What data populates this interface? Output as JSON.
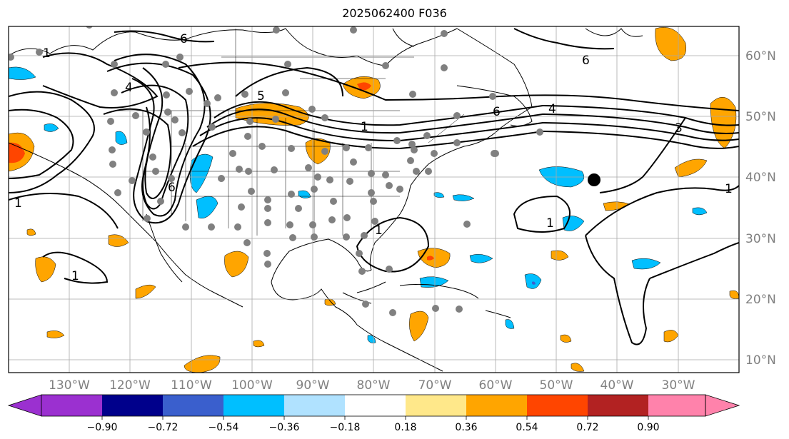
{
  "title": "2025062400 F036",
  "map": {
    "projection": "equirectangular",
    "lon_range": [
      -140,
      -18
    ],
    "lat_range": [
      8,
      65
    ],
    "lat_labels": [
      "60°N",
      "50°N",
      "40°N",
      "30°N",
      "20°N",
      "10°N"
    ],
    "lon_labels": [
      "130°W",
      "120°W",
      "110°W",
      "100°W",
      "90°W",
      "80°W",
      "70°W",
      "60°W",
      "50°W",
      "40°W",
      "30°W"
    ],
    "contour_labels": [
      "6",
      "6",
      "4",
      "5",
      "1",
      "6",
      "4",
      "3",
      "1",
      "1",
      "1",
      "1",
      "1",
      "6",
      "1"
    ],
    "marker_colors": {
      "stations": "#808080",
      "target": "#000000"
    }
  },
  "colorbar": {
    "ticks": [
      "−0.90",
      "−0.72",
      "−0.54",
      "−0.36",
      "−0.18",
      "0.18",
      "0.36",
      "0.54",
      "0.72",
      "0.90"
    ],
    "colors": [
      "#9b30d0",
      "#00008b",
      "#3a5fcd",
      "#00bfff",
      "#b0e2ff",
      "#ffffff",
      "#ffe88a",
      "#ffa500",
      "#ff4500",
      "#b22222",
      "#ff82ab"
    ]
  }
}
